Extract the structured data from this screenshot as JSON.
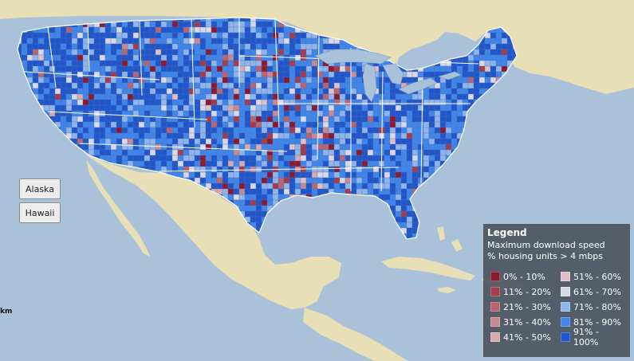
{
  "buttons": {
    "alaska": "Alaska",
    "hawaii": "Hawaii"
  },
  "scale_unit": "km",
  "legend": {
    "title": "Legend",
    "subtitle1": "Maximum download speed",
    "subtitle2": "% housing units > 4 mbps",
    "items": [
      {
        "label": "0% - 10%",
        "color": "#8b1a2e"
      },
      {
        "label": "11% - 20%",
        "color": "#a43c4a"
      },
      {
        "label": "21% - 30%",
        "color": "#b66670"
      },
      {
        "label": "31% - 40%",
        "color": "#c78a92"
      },
      {
        "label": "41% - 50%",
        "color": "#d7a9b0"
      },
      {
        "label": "51% - 60%",
        "color": "#e0bfc6"
      },
      {
        "label": "61% - 70%",
        "color": "#d8d8e6"
      },
      {
        "label": "71% - 80%",
        "color": "#8fb6ec"
      },
      {
        "label": "81% - 90%",
        "color": "#3f86ec"
      },
      {
        "label": "91% - 100%",
        "color": "#1f56cc"
      }
    ]
  },
  "colors": {
    "water": "#a9c2d9",
    "land": "#e9dfb6",
    "state_border": "#ffffff",
    "high": "#2255d6",
    "low": "#cc1111"
  }
}
